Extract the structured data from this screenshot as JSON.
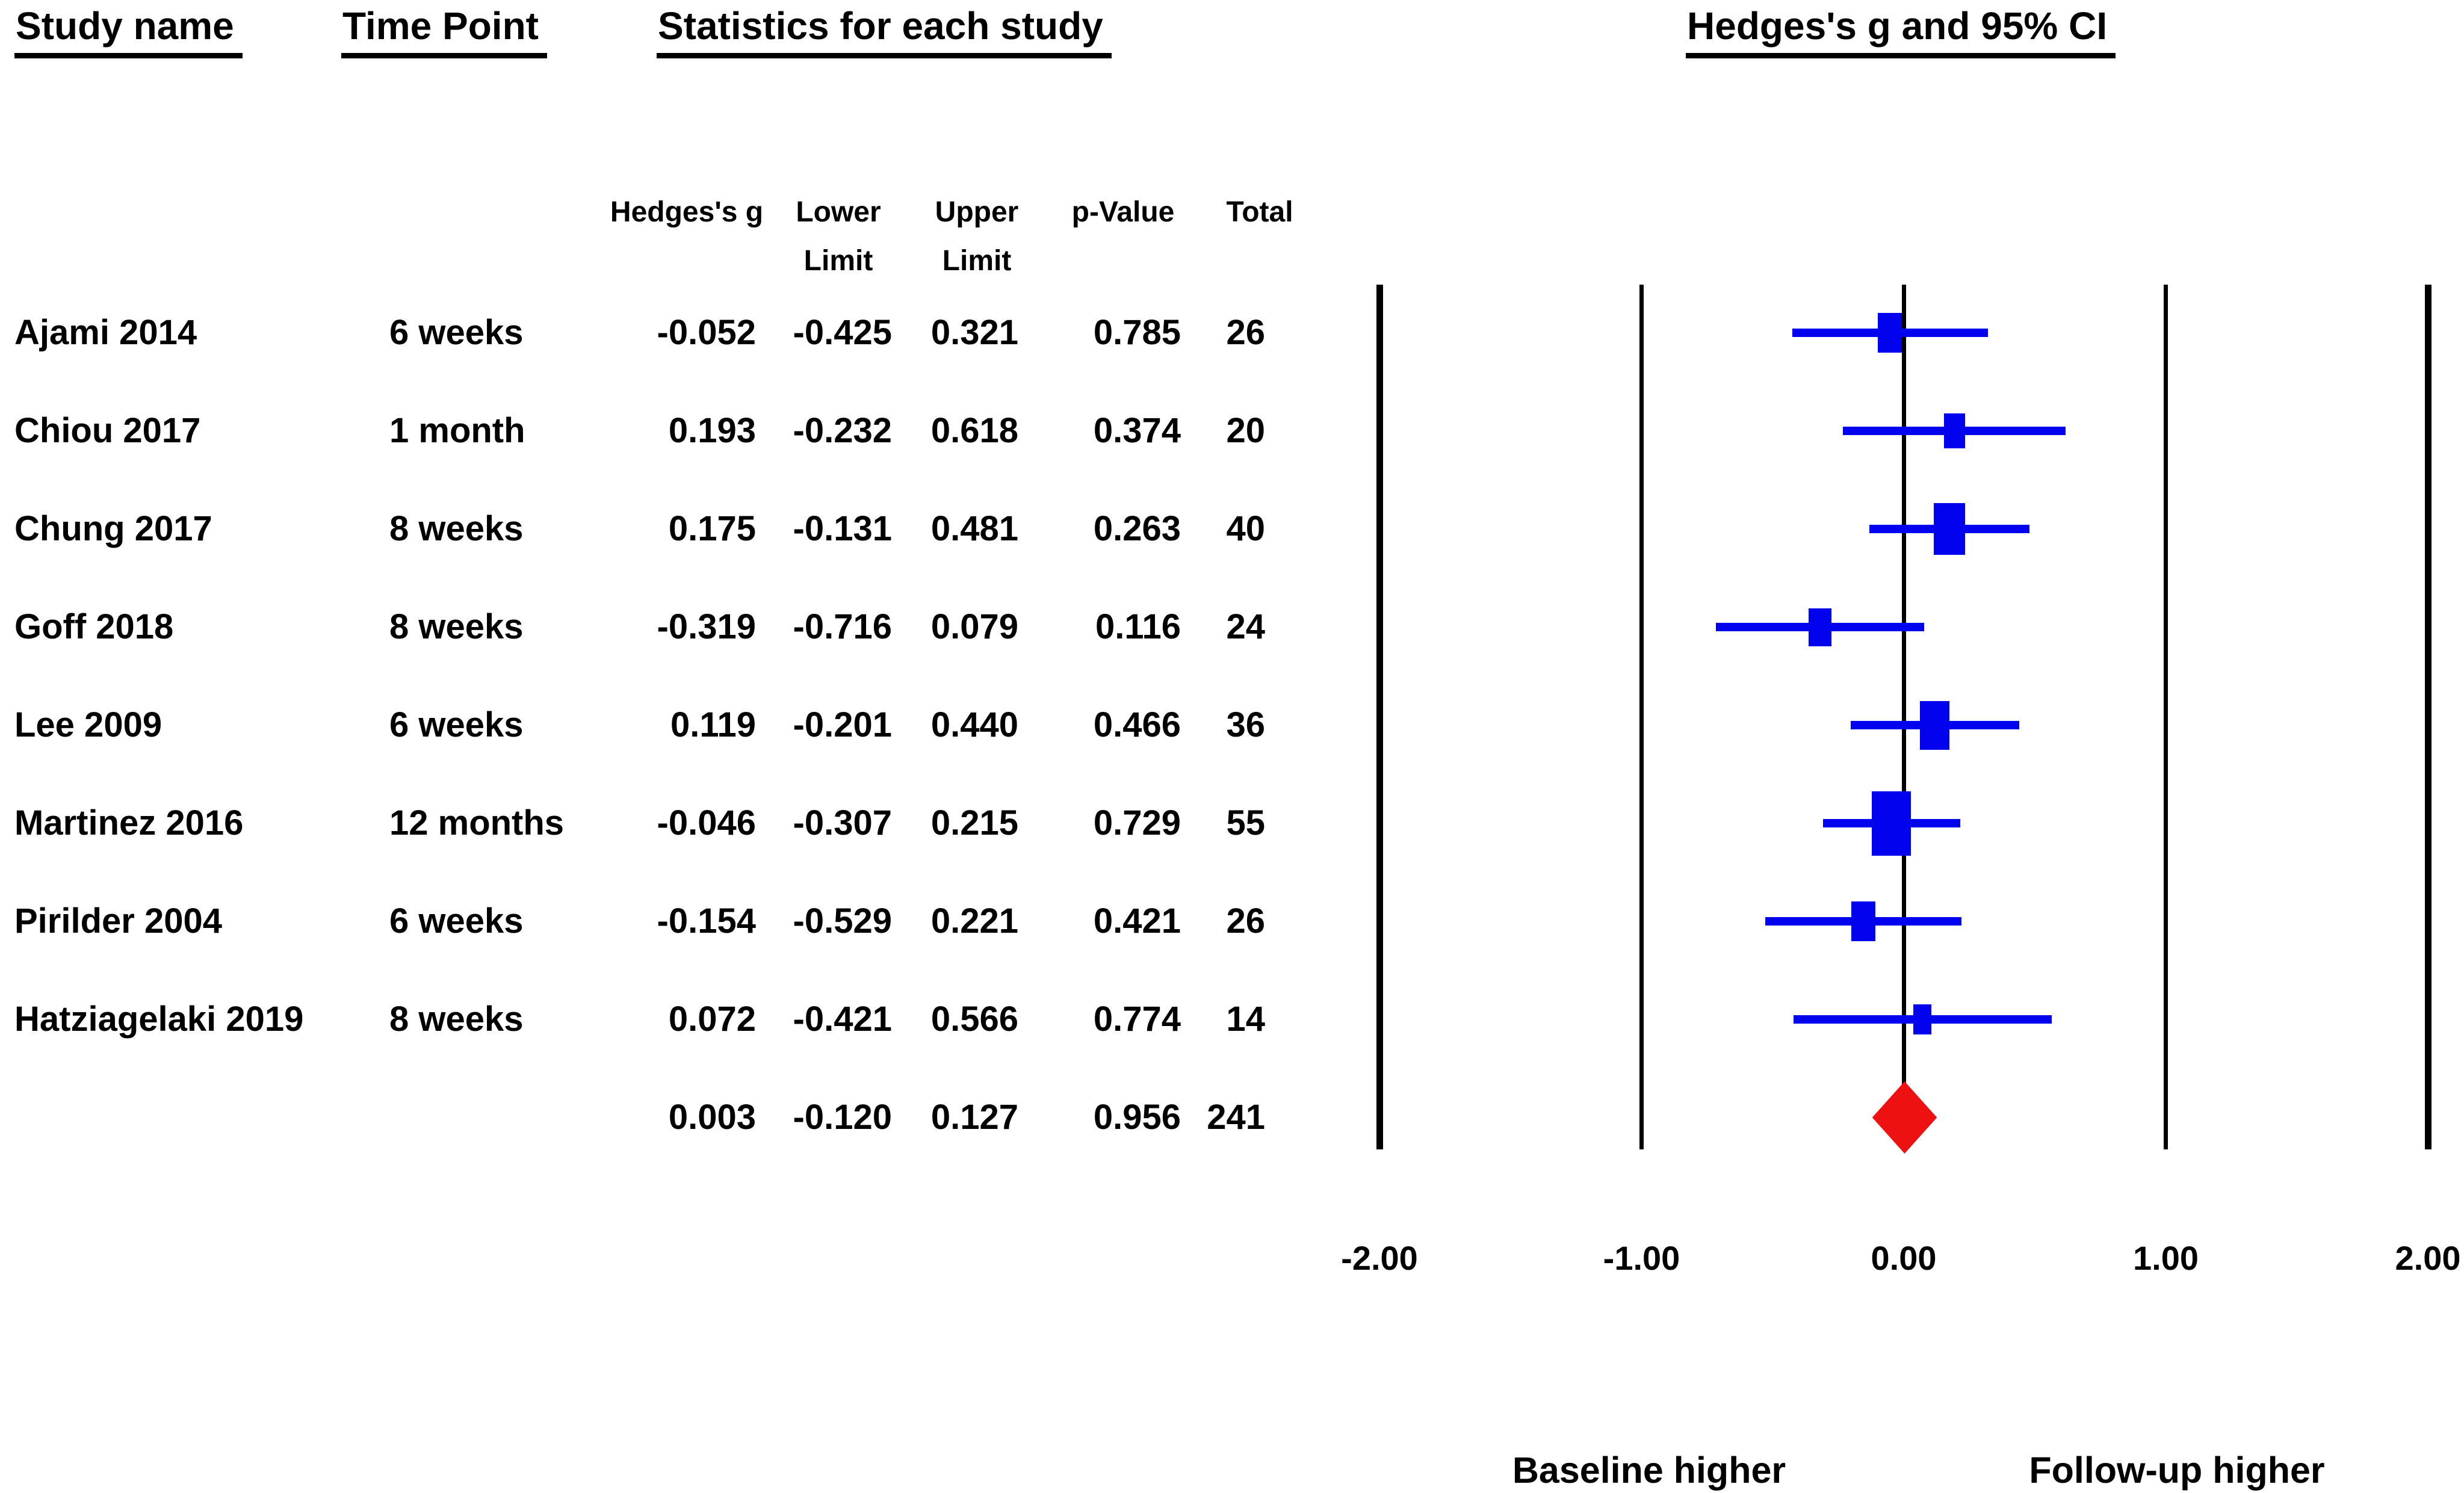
{
  "headers": {
    "study_name": "Study name",
    "time_point": "Time Point",
    "statistics": "Statistics for each study",
    "plot_title": "Hedges's g and 95% CI"
  },
  "stat_columns": [
    {
      "lines": [
        "Hedges's g"
      ]
    },
    {
      "lines": [
        "Lower",
        "Limit"
      ]
    },
    {
      "lines": [
        "Upper",
        "Limit"
      ]
    },
    {
      "lines": [
        "p-Value"
      ]
    },
    {
      "lines": [
        "Total"
      ]
    }
  ],
  "chart_data": {
    "type": "forest",
    "effect_measure": "Hedges's g",
    "x_axis": {
      "range": [
        -2.0,
        2.0
      ],
      "ticks": [
        -2.0,
        -1.0,
        0.0,
        1.0,
        2.0
      ],
      "tick_labels": [
        "-2.00",
        "-1.00",
        "0.00",
        "1.00",
        "2.00"
      ]
    },
    "studies": [
      {
        "name": "Ajami 2014",
        "time_point": "6 weeks",
        "g": "-0.052",
        "lower": "-0.425",
        "upper": "0.321",
        "p": "0.785",
        "total": "26"
      },
      {
        "name": "Chiou 2017",
        "time_point": "1 month",
        "g": "0.193",
        "lower": "-0.232",
        "upper": "0.618",
        "p": "0.374",
        "total": "20"
      },
      {
        "name": "Chung 2017",
        "time_point": "8 weeks",
        "g": "0.175",
        "lower": "-0.131",
        "upper": "0.481",
        "p": "0.263",
        "total": "40"
      },
      {
        "name": "Goff 2018",
        "time_point": "8 weeks",
        "g": "-0.319",
        "lower": "-0.716",
        "upper": "0.079",
        "p": "0.116",
        "total": "24"
      },
      {
        "name": "Lee 2009",
        "time_point": "6 weeks",
        "g": "0.119",
        "lower": "-0.201",
        "upper": "0.440",
        "p": "0.466",
        "total": "36"
      },
      {
        "name": "Martinez 2016",
        "time_point": "12 months",
        "g": "-0.046",
        "lower": "-0.307",
        "upper": "0.215",
        "p": "0.729",
        "total": "55"
      },
      {
        "name": "Pirilder 2004",
        "time_point": "6 weeks",
        "g": "-0.154",
        "lower": "-0.529",
        "upper": "0.221",
        "p": "0.421",
        "total": "26"
      },
      {
        "name": "Hatziagelaki 2019",
        "time_point": "8 weeks",
        "g": "0.072",
        "lower": "-0.421",
        "upper": "0.566",
        "p": "0.774",
        "total": "14"
      }
    ],
    "summary": {
      "g": "0.003",
      "lower": "-0.120",
      "upper": "0.127",
      "p": "0.956",
      "total": "241"
    },
    "footer_labels": {
      "left": "Baseline higher",
      "right": "Follow-up higher"
    },
    "marker_color": "#0202EE",
    "diamond_color": "#EE1111",
    "axis_color": "#000000"
  }
}
